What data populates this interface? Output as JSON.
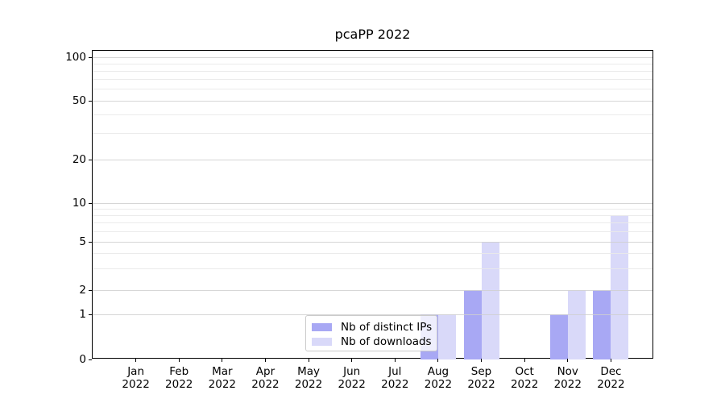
{
  "title": "pcaPP 2022",
  "chart_data": {
    "type": "bar",
    "title": "pcaPP 2022",
    "x_year": "2022",
    "categories": [
      "Jan",
      "Feb",
      "Mar",
      "Apr",
      "May",
      "Jun",
      "Jul",
      "Aug",
      "Sep",
      "Oct",
      "Nov",
      "Dec"
    ],
    "series": [
      {
        "name": "Nb of distinct IPs",
        "color": "#a8a8f4",
        "values": [
          0,
          0,
          0,
          0,
          0,
          0,
          0,
          1,
          2,
          0,
          1,
          2
        ]
      },
      {
        "name": "Nb of downloads",
        "color": "#d9d9f9",
        "values": [
          0,
          0,
          0,
          0,
          0,
          0,
          0,
          1,
          5,
          0,
          2,
          8
        ]
      }
    ],
    "yticks": [
      0,
      1,
      2,
      5,
      10,
      20,
      50,
      100
    ],
    "minor_gridlines": [
      3,
      4,
      6,
      7,
      8,
      9,
      30,
      40,
      60,
      70,
      80,
      90
    ],
    "ylim": [
      0,
      110
    ],
    "yscale": "log-with-zero",
    "xlabel": "",
    "ylabel": "",
    "grid": "horizontal",
    "legend_position": "lower center"
  }
}
